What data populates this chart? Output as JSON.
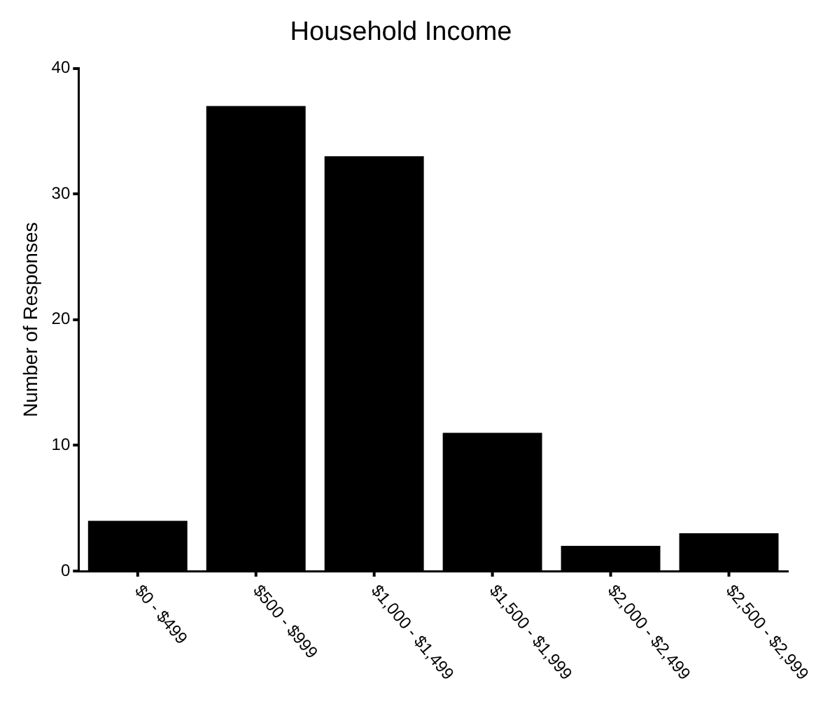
{
  "chart_data": {
    "type": "bar",
    "title": "Household Income",
    "ylabel": "Number of Responses",
    "categories": [
      "$0 - $499",
      "$500 - $999",
      "$1,000 - $1,499",
      "$1,500 - $1,999",
      "$2,000 - $2,499",
      "$2,500 - $2,999"
    ],
    "values": [
      4,
      37,
      33,
      11,
      2,
      3
    ],
    "color": "#000000",
    "ylim": [
      0,
      40
    ],
    "yticks": [
      0,
      10,
      20,
      30,
      40
    ],
    "grid": false,
    "legend": false
  }
}
